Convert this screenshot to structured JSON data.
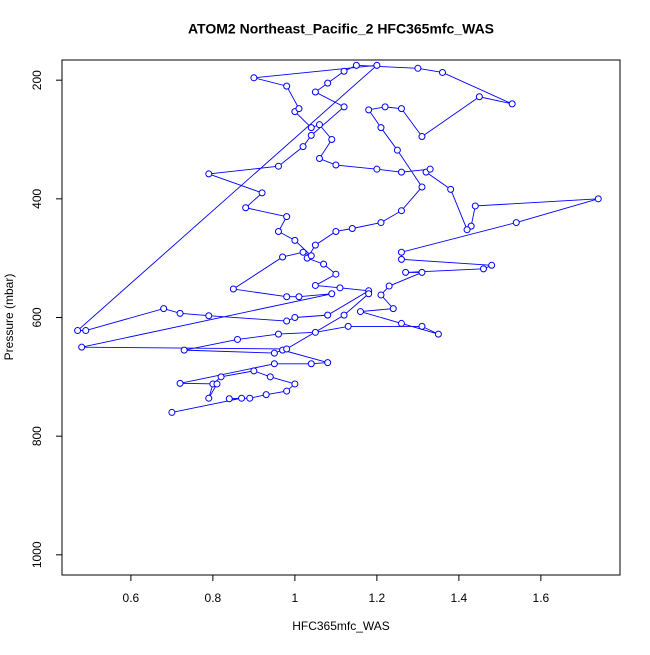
{
  "chart_data": {
    "type": "line",
    "title": "ATOM2 Northeast_Pacific_2 HFC365mfc_WAS",
    "x_label": "HFC365mfc_WAS",
    "y_label": "Pressure (mbar)",
    "color": "#0000ff",
    "y_reversed": true,
    "xlim": [
      0.432,
      1.793
    ],
    "ylim": [
      166,
      1034
    ],
    "xticks": [
      0.6,
      0.8,
      1.0,
      1.2,
      1.4,
      1.6
    ],
    "yticks": [
      200,
      400,
      600,
      800,
      1000
    ],
    "x": [
      0.7,
      0.87,
      0.84,
      0.89,
      0.93,
      0.98,
      1.0,
      0.94,
      0.9,
      0.82,
      0.8,
      0.79,
      0.81,
      0.72,
      0.95,
      1.04,
      1.08,
      0.97,
      0.95,
      0.73,
      0.86,
      0.96,
      1.05,
      1.13,
      1.31,
      1.35,
      1.26,
      1.16,
      1.24,
      1.21,
      1.23,
      1.31,
      1.27,
      1.46,
      1.48,
      1.26,
      1.26,
      1.54,
      1.74,
      1.44,
      1.43,
      1.42,
      1.38,
      1.32,
      1.33,
      1.26,
      1.2,
      1.1,
      1.06,
      1.09,
      1.06,
      1.04,
      1.0,
      1.01,
      0.98,
      0.9,
      1.2,
      0.47,
      0.49,
      0.68,
      0.72,
      0.79,
      0.98,
      1.0,
      1.08,
      1.18,
      1.11,
      1.05,
      1.1,
      1.07,
      1.03,
      1.05,
      1.1,
      1.14,
      1.21,
      1.26,
      1.31,
      1.25,
      1.21,
      1.18,
      1.22,
      1.26,
      1.31,
      1.45,
      1.53,
      1.36,
      1.3,
      1.15,
      1.12,
      1.08,
      1.05,
      1.12,
      1.04,
      1.02,
      0.96,
      0.79,
      0.92,
      0.88,
      0.98,
      0.96,
      1.0,
      1.04,
      1.02,
      0.97,
      0.85,
      0.98,
      1.01,
      1.09,
      0.48,
      0.98,
      1.12,
      1.18
    ],
    "values": [
      760,
      736,
      737,
      736,
      730,
      724,
      712,
      700,
      690,
      700,
      712,
      736,
      712,
      711,
      678,
      678,
      676,
      655,
      660,
      655,
      637,
      628,
      625,
      615,
      615,
      628,
      610,
      590,
      585,
      562,
      547,
      524,
      524,
      518,
      512,
      502,
      490,
      440,
      400,
      412,
      446,
      452,
      384,
      355,
      350,
      355,
      350,
      343,
      332,
      300,
      275,
      280,
      253,
      248,
      210,
      196,
      175,
      622,
      622,
      585,
      593,
      597,
      606,
      600,
      596,
      555,
      550,
      546,
      527,
      510,
      500,
      478,
      455,
      450,
      440,
      420,
      380,
      318,
      280,
      250,
      245,
      248,
      295,
      228,
      240,
      187,
      180,
      175,
      185,
      205,
      220,
      245,
      293,
      312,
      345,
      358,
      390,
      415,
      430,
      455,
      470,
      496,
      490,
      498,
      552,
      565,
      565,
      560,
      650,
      653,
      596,
      560
    ]
  }
}
